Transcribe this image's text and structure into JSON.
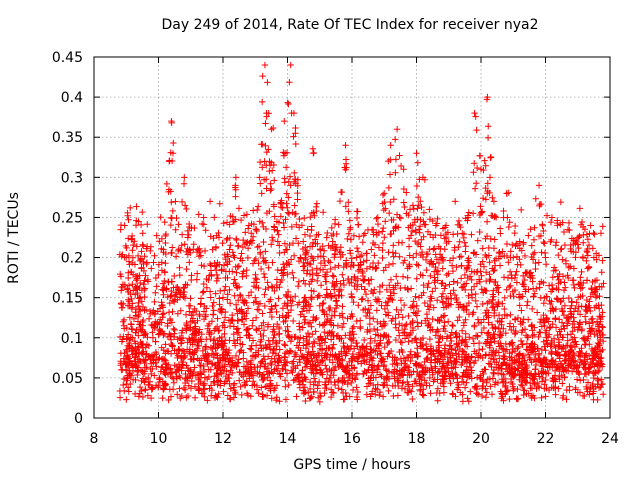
{
  "chart_data": {
    "type": "scatter",
    "title": "Day 249 of 2014, Rate Of TEC Index for receiver nya2",
    "xlabel": "GPS time / hours",
    "ylabel": "ROTI / TECUs",
    "xlim": [
      8,
      24
    ],
    "ylim": [
      0,
      0.45
    ],
    "xticks": [
      "8",
      "10",
      "12",
      "14",
      "16",
      "18",
      "20",
      "22",
      "24"
    ],
    "yticks": [
      "0",
      "0.05",
      "0.1",
      "0.15",
      "0.2",
      "0.25",
      "0.3",
      "0.35",
      "0.4",
      "0.45"
    ],
    "grid": true,
    "marker": "+",
    "color": "#ff0000",
    "x_range": [
      8.8,
      23.8
    ],
    "series": [
      {
        "name": "ROTI",
        "x": [
          8.85,
          8.9,
          8.95,
          9.0,
          9.05,
          9.1,
          9.2,
          9.3,
          9.5,
          9.7,
          9.9,
          10.1,
          10.3,
          10.4,
          10.45,
          10.6,
          10.8,
          11.0,
          11.2,
          11.4,
          11.6,
          11.8,
          12.0,
          12.2,
          12.4,
          12.6,
          12.8,
          13.0,
          13.2,
          13.3,
          13.35,
          13.5,
          13.7,
          13.9,
          14.0,
          14.1,
          14.2,
          14.4,
          14.6,
          14.8,
          15.0,
          15.2,
          15.4,
          15.6,
          15.8,
          16.0,
          16.2,
          16.4,
          16.6,
          16.8,
          17.0,
          17.2,
          17.4,
          17.6,
          17.8,
          18.0,
          18.2,
          18.4,
          18.6,
          18.8,
          19.0,
          19.2,
          19.4,
          19.6,
          19.8,
          20.0,
          20.2,
          20.4,
          20.6,
          20.8,
          21.0,
          21.2,
          21.4,
          21.6,
          21.8,
          22.0,
          22.2,
          22.4,
          22.6,
          22.8,
          23.0,
          23.2,
          23.4,
          23.5,
          23.6,
          23.7
        ],
        "y": [
          0.06,
          0.12,
          0.24,
          0.2,
          0.09,
          0.07,
          0.1,
          0.08,
          0.11,
          0.09,
          0.12,
          0.14,
          0.17,
          0.37,
          0.33,
          0.13,
          0.3,
          0.12,
          0.18,
          0.25,
          0.27,
          0.19,
          0.15,
          0.21,
          0.3,
          0.18,
          0.24,
          0.15,
          0.28,
          0.44,
          0.38,
          0.36,
          0.22,
          0.37,
          0.14,
          0.44,
          0.38,
          0.2,
          0.18,
          0.33,
          0.14,
          0.17,
          0.22,
          0.16,
          0.34,
          0.15,
          0.19,
          0.23,
          0.21,
          0.25,
          0.28,
          0.34,
          0.36,
          0.31,
          0.26,
          0.33,
          0.3,
          0.26,
          0.24,
          0.2,
          0.22,
          0.27,
          0.19,
          0.25,
          0.38,
          0.31,
          0.4,
          0.27,
          0.23,
          0.28,
          0.2,
          0.22,
          0.18,
          0.17,
          0.29,
          0.2,
          0.25,
          0.16,
          0.14,
          0.13,
          0.11,
          0.1,
          0.24,
          0.2,
          0.16,
          0.12
        ]
      }
    ]
  }
}
